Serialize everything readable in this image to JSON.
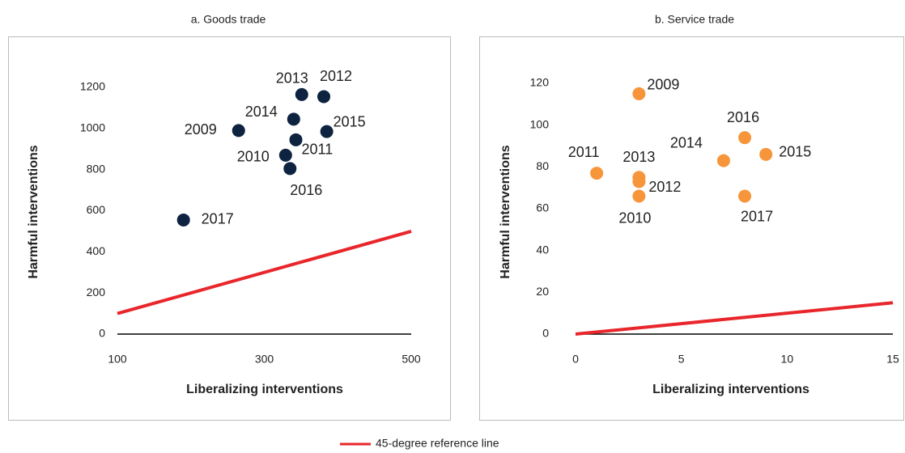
{
  "chart_data": [
    {
      "type": "scatter",
      "title": "a. Goods trade",
      "xlabel": "Liberalizing interventions",
      "ylabel": "Harmful interventions",
      "xlim": [
        100,
        500
      ],
      "xticks": [
        100,
        300,
        500
      ],
      "ylim": [
        0,
        1200
      ],
      "yticks": [
        0,
        200,
        400,
        600,
        800,
        1000,
        1200
      ],
      "series": [
        {
          "color": "#0d2340",
          "labels": [
            "2017",
            "2009",
            "2010",
            "2014",
            "2013",
            "2012",
            "2015",
            "2011",
            "2016"
          ],
          "x": [
            190,
            265,
            329,
            340,
            351,
            381,
            385,
            343,
            335
          ],
          "values": [
            555,
            990,
            870,
            1045,
            1165,
            1155,
            985,
            945,
            805
          ]
        }
      ],
      "reference_line": {
        "x": [
          100,
          500
        ],
        "values": [
          100,
          500
        ]
      }
    },
    {
      "type": "scatter",
      "title": "b. Service trade",
      "xlabel": "Liberalizing interventions",
      "ylabel": "Harmful interventions",
      "xlim": [
        0,
        15
      ],
      "xticks": [
        0,
        5,
        10,
        15
      ],
      "ylim": [
        0,
        120
      ],
      "yticks": [
        0,
        20,
        40,
        60,
        80,
        100,
        120
      ],
      "series": [
        {
          "color": "#f7953a",
          "labels": [
            "2009",
            "2011",
            "2013",
            "2012",
            "2010",
            "2014",
            "2016",
            "2015",
            "2017"
          ],
          "x": [
            3,
            1,
            3,
            3,
            3,
            7,
            8,
            9,
            8
          ],
          "values": [
            115,
            77,
            75,
            73,
            66,
            83,
            94,
            86,
            66
          ]
        }
      ],
      "reference_line": {
        "x": [
          0,
          15
        ],
        "values": [
          0,
          15
        ]
      }
    }
  ],
  "legend": {
    "name": "45-degree reference line",
    "color": "#e8262b"
  }
}
